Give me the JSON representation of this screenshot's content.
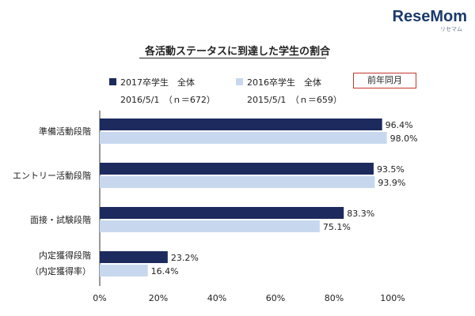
{
  "watermark": {
    "logo": "ReseMom",
    "logo_sub": "リセマム"
  },
  "legend": {
    "series1_label": "2017卒学生　全体",
    "series1_sub": "2016/5/1　（ｎ＝672）",
    "series2_label": "2016卒学生　全体",
    "series2_sub": "2015/5/1　（ｎ＝659）",
    "note": "前年同月"
  },
  "colors": {
    "series1": "#1c2a5e",
    "series2": "#c7d8ee",
    "axis": "#333333"
  },
  "chart_data": {
    "type": "bar",
    "orientation": "horizontal",
    "title": "各活動ステータスに到達した学生の割合",
    "categories": [
      "準備活動段階",
      "エントリー活動段階",
      "面接・試験段階",
      "内定獲得段階\n（内定獲得率）"
    ],
    "series": [
      {
        "name": "2017卒学生　全体",
        "values": [
          96.4,
          93.5,
          83.3,
          23.2
        ]
      },
      {
        "name": "2016卒学生　全体",
        "values": [
          98.0,
          93.9,
          75.1,
          16.4
        ]
      }
    ],
    "value_labels": [
      [
        "96.4%",
        "93.5%",
        "83.3%",
        "23.2%"
      ],
      [
        "98.0%",
        "93.9%",
        "75.1%",
        "16.4%"
      ]
    ],
    "xlim": [
      0,
      100
    ],
    "xticks": [
      0,
      20,
      40,
      60,
      80,
      100
    ],
    "xtick_labels": [
      "0%",
      "20%",
      "40%",
      "60%",
      "80%",
      "100%"
    ],
    "xlabel": "",
    "ylabel": "",
    "grid": false,
    "legend_position": "top"
  }
}
